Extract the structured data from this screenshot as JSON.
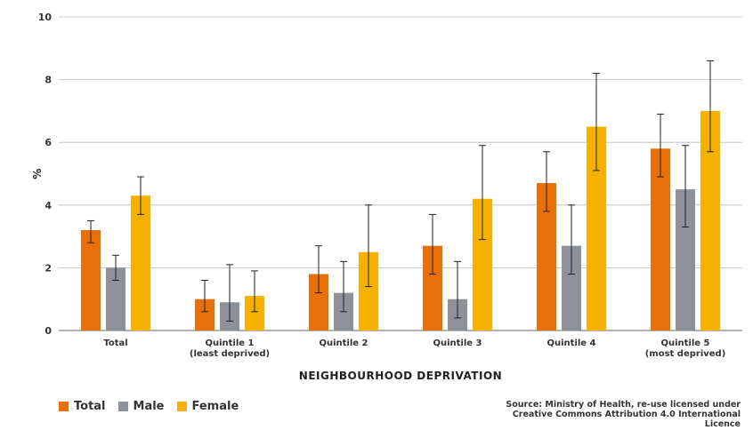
{
  "chart_data": {
    "type": "bar",
    "xlabel": "NEIGHBOURHOOD DEPRIVATION",
    "ylabel": "%",
    "ylim": [
      0,
      10
    ],
    "yticks": [
      0,
      2,
      4,
      6,
      8,
      10
    ],
    "grid": true,
    "legend_position": "bottom-left",
    "categories": [
      [
        "Total"
      ],
      [
        "Quintile 1",
        "(least deprived)"
      ],
      [
        "Quintile 2"
      ],
      [
        "Quintile 3"
      ],
      [
        "Quintile 4"
      ],
      [
        "Quintile 5",
        "(most deprived)"
      ]
    ],
    "series": [
      {
        "name": "Total",
        "color": "#E8700A",
        "values": [
          3.2,
          1.0,
          1.8,
          2.7,
          4.7,
          5.8
        ],
        "error_low": [
          2.8,
          0.6,
          1.2,
          1.8,
          3.8,
          4.9
        ],
        "error_high": [
          3.5,
          1.6,
          2.7,
          3.7,
          5.7,
          6.9
        ]
      },
      {
        "name": "Male",
        "color": "#8C919A",
        "values": [
          2.0,
          0.9,
          1.2,
          1.0,
          2.7,
          4.5
        ],
        "error_low": [
          1.6,
          0.3,
          0.6,
          0.4,
          1.8,
          3.3
        ],
        "error_high": [
          2.4,
          2.1,
          2.2,
          2.2,
          4.0,
          5.9
        ]
      },
      {
        "name": "Female",
        "color": "#F6B100",
        "values": [
          4.3,
          1.1,
          2.5,
          4.2,
          6.5,
          7.0
        ],
        "error_low": [
          3.7,
          0.6,
          1.4,
          2.9,
          5.1,
          5.7
        ],
        "error_high": [
          4.9,
          1.9,
          4.0,
          5.9,
          8.2,
          8.6
        ]
      }
    ]
  },
  "source": {
    "label": "Source:",
    "text": " Ministry of Health, re-use licensed under Creative Commons Attribution 4.0 International Licence"
  }
}
